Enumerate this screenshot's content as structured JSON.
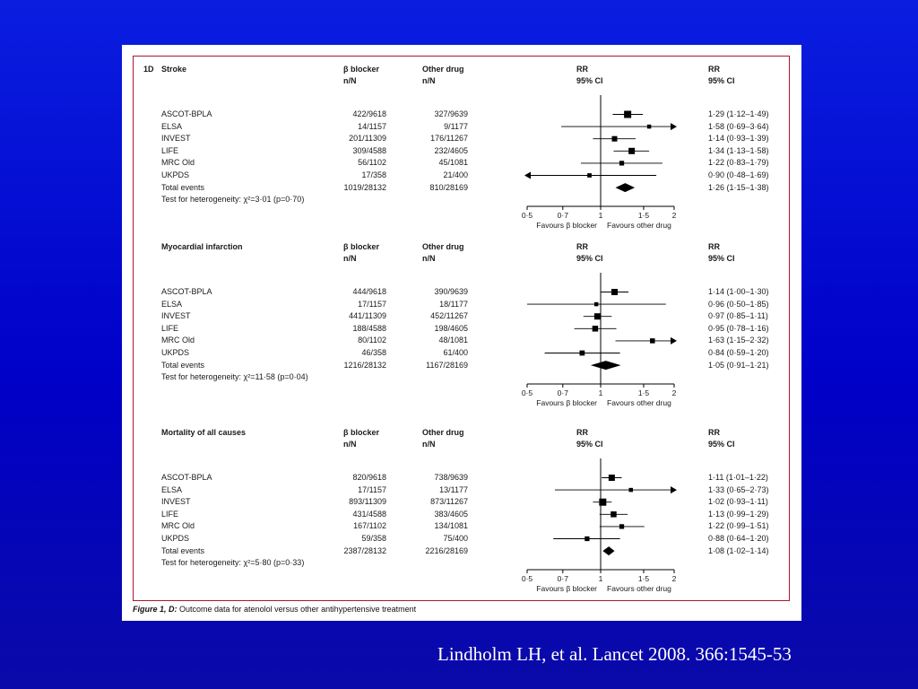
{
  "citation": "Lindholm LH, et al. Lancet 2008. 366:1545-53",
  "figure_caption": {
    "prefix": "Figure 1, D:",
    "text": " Outcome data for atenolol versus other antihypertensive treatment"
  },
  "column_headers": {
    "beta_blocker": "β blocker",
    "other_drug": "Other drug",
    "n_over_N": "n/N",
    "rr": "RR",
    "ci": "95% CI"
  },
  "axis": {
    "ticks": [
      "0·5",
      "0·7",
      "1",
      "1·5",
      "2"
    ],
    "favours_left": "Favours β blocker",
    "favours_right": "Favours other drug"
  },
  "colors": {
    "background": "#0000c8",
    "frame": "#b0152e",
    "marker": "#000000"
  },
  "chart_data": [
    {
      "type": "forest",
      "label": "1D",
      "title": "Stroke",
      "x_scale": "log",
      "xlim": [
        0.5,
        2
      ],
      "studies": [
        {
          "name": "ASCOT-BPLA",
          "bb": "422/9618",
          "other": "327/9639",
          "rr": 1.29,
          "lo": 1.12,
          "hi": 1.49,
          "rr_text": "1·29 (1·12–1·49)",
          "weight": 1.0
        },
        {
          "name": "ELSA",
          "bb": "14/1157",
          "other": "9/1177",
          "rr": 1.58,
          "lo": 0.69,
          "hi": 3.64,
          "rr_text": "1·58 (0·69–3·64)",
          "weight": 0.3
        },
        {
          "name": "INVEST",
          "bb": "201/11309",
          "other": "176/11267",
          "rr": 1.14,
          "lo": 0.93,
          "hi": 1.39,
          "rr_text": "1·14 (0·93–1·39)",
          "weight": 0.6
        },
        {
          "name": "LIFE",
          "bb": "309/4588",
          "other": "232/4605",
          "rr": 1.34,
          "lo": 1.13,
          "hi": 1.58,
          "rr_text": "1·34 (1·13–1·58)",
          "weight": 0.8
        },
        {
          "name": "MRC Old",
          "bb": "56/1102",
          "other": "45/1081",
          "rr": 1.22,
          "lo": 0.83,
          "hi": 1.79,
          "rr_text": "1·22 (0·83–1·79)",
          "weight": 0.45
        },
        {
          "name": "UKPDS",
          "bb": "17/358",
          "other": "21/400",
          "rr": 0.9,
          "lo": 0.48,
          "hi": 1.69,
          "rr_text": "0·90 (0·48–1·69)",
          "weight": 0.35
        }
      ],
      "total": {
        "name": "Total events",
        "bb": "1019/28132",
        "other": "810/28169",
        "rr": 1.26,
        "lo": 1.15,
        "hi": 1.38,
        "rr_text": "1·26 (1·15–1·38)"
      },
      "heterogeneity": "Test for heterogeneity: χ²=3·01 (p=0·70)"
    },
    {
      "type": "forest",
      "label": "",
      "title": "Myocardial infarction",
      "x_scale": "log",
      "xlim": [
        0.5,
        2
      ],
      "studies": [
        {
          "name": "ASCOT-BPLA",
          "bb": "444/9618",
          "other": "390/9639",
          "rr": 1.14,
          "lo": 1.0,
          "hi": 1.3,
          "rr_text": "1·14 (1·00–1·30)",
          "weight": 0.8
        },
        {
          "name": "ELSA",
          "bb": "17/1157",
          "other": "18/1177",
          "rr": 0.96,
          "lo": 0.5,
          "hi": 1.85,
          "rr_text": "0·96 (0·50–1·85)",
          "weight": 0.3
        },
        {
          "name": "INVEST",
          "bb": "441/11309",
          "other": "452/11267",
          "rr": 0.97,
          "lo": 0.85,
          "hi": 1.11,
          "rr_text": "0·97 (0·85–1·11)",
          "weight": 0.8
        },
        {
          "name": "LIFE",
          "bb": "188/4588",
          "other": "198/4605",
          "rr": 0.95,
          "lo": 0.78,
          "hi": 1.16,
          "rr_text": "0·95 (0·78–1·16)",
          "weight": 0.7
        },
        {
          "name": "MRC Old",
          "bb": "80/1102",
          "other": "48/1081",
          "rr": 1.63,
          "lo": 1.15,
          "hi": 2.32,
          "rr_text": "1·63 (1·15–2·32)",
          "weight": 0.5
        },
        {
          "name": "UKPDS",
          "bb": "46/358",
          "other": "61/400",
          "rr": 0.84,
          "lo": 0.59,
          "hi": 1.2,
          "rr_text": "0·84 (0·59–1·20)",
          "weight": 0.55
        }
      ],
      "total": {
        "name": "Total events",
        "bb": "1216/28132",
        "other": "1167/28169",
        "rr": 1.05,
        "lo": 0.91,
        "hi": 1.21,
        "rr_text": "1·05 (0·91–1·21)"
      },
      "heterogeneity": "Test for heterogeneity: χ²=11·58 (p=0·04)"
    },
    {
      "type": "forest",
      "label": "",
      "title": "Mortality of all causes",
      "x_scale": "log",
      "xlim": [
        0.5,
        2
      ],
      "studies": [
        {
          "name": "ASCOT-BPLA",
          "bb": "820/9618",
          "other": "738/9639",
          "rr": 1.11,
          "lo": 1.01,
          "hi": 1.22,
          "rr_text": "1·11 (1·01–1·22)",
          "weight": 0.8
        },
        {
          "name": "ELSA",
          "bb": "17/1157",
          "other": "13/1177",
          "rr": 1.33,
          "lo": 0.65,
          "hi": 2.73,
          "rr_text": "1·33 (0·65–2·73)",
          "weight": 0.3
        },
        {
          "name": "INVEST",
          "bb": "893/11309",
          "other": "873/11267",
          "rr": 1.02,
          "lo": 0.93,
          "hi": 1.11,
          "rr_text": "1·02 (0·93–1·11)",
          "weight": 1.0
        },
        {
          "name": "LIFE",
          "bb": "431/4588",
          "other": "383/4605",
          "rr": 1.13,
          "lo": 0.99,
          "hi": 1.29,
          "rr_text": "1·13 (0·99–1·29)",
          "weight": 0.7
        },
        {
          "name": "MRC Old",
          "bb": "167/1102",
          "other": "134/1081",
          "rr": 1.22,
          "lo": 0.99,
          "hi": 1.51,
          "rr_text": "1·22 (0·99–1·51)",
          "weight": 0.45
        },
        {
          "name": "UKPDS",
          "bb": "59/358",
          "other": "75/400",
          "rr": 0.88,
          "lo": 0.64,
          "hi": 1.2,
          "rr_text": "0·88 (0·64–1·20)",
          "weight": 0.45
        }
      ],
      "total": {
        "name": "Total events",
        "bb": "2387/28132",
        "other": "2216/28169",
        "rr": 1.08,
        "lo": 1.02,
        "hi": 1.14,
        "rr_text": "1·08 (1·02–1·14)"
      },
      "heterogeneity": "Test for heterogeneity: χ²=5·80 (p=0·33)"
    }
  ]
}
